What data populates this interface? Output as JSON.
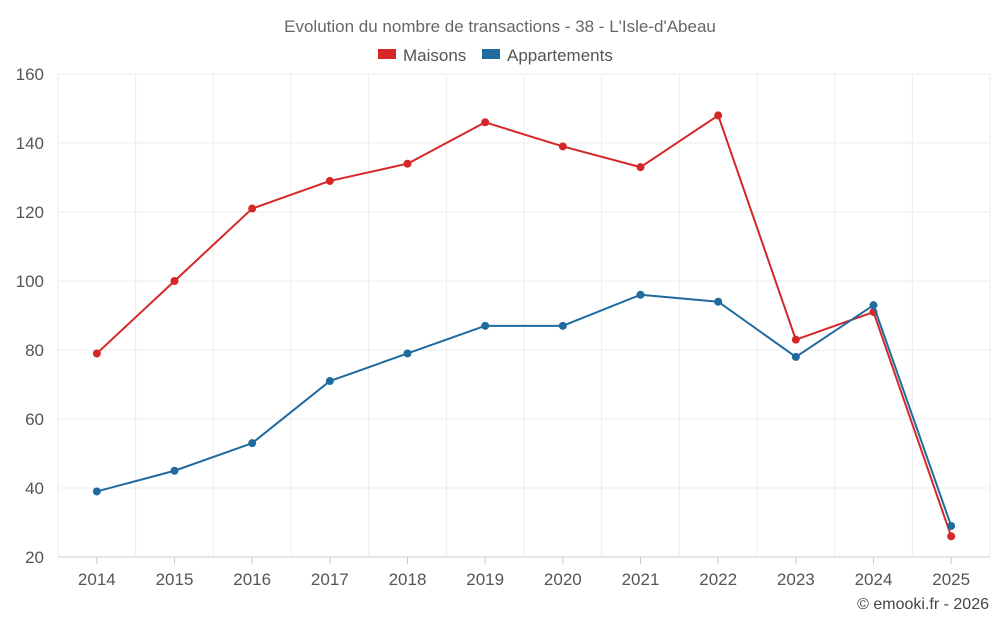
{
  "chart_data": {
    "type": "line",
    "title": "Evolution du nombre de transactions - 38 - L'Isle-d'Abeau",
    "xlabel": "",
    "ylabel": "",
    "categories": [
      "2014",
      "2015",
      "2016",
      "2017",
      "2018",
      "2019",
      "2020",
      "2021",
      "2022",
      "2023",
      "2024",
      "2025"
    ],
    "ylim": [
      20,
      160
    ],
    "yticks": [
      20,
      40,
      60,
      80,
      100,
      120,
      140,
      160
    ],
    "grid": true,
    "legend_position": "top-center",
    "series": [
      {
        "name": "Maisons",
        "color": "#d62728",
        "values": [
          79,
          100,
          121,
          129,
          134,
          146,
          139,
          133,
          148,
          83,
          91,
          26
        ]
      },
      {
        "name": "Appartements",
        "color": "#1f6ba0",
        "values": [
          39,
          45,
          53,
          71,
          79,
          87,
          87,
          96,
          94,
          78,
          93,
          29
        ]
      }
    ]
  },
  "credit": "© emooki.fr - 2026"
}
